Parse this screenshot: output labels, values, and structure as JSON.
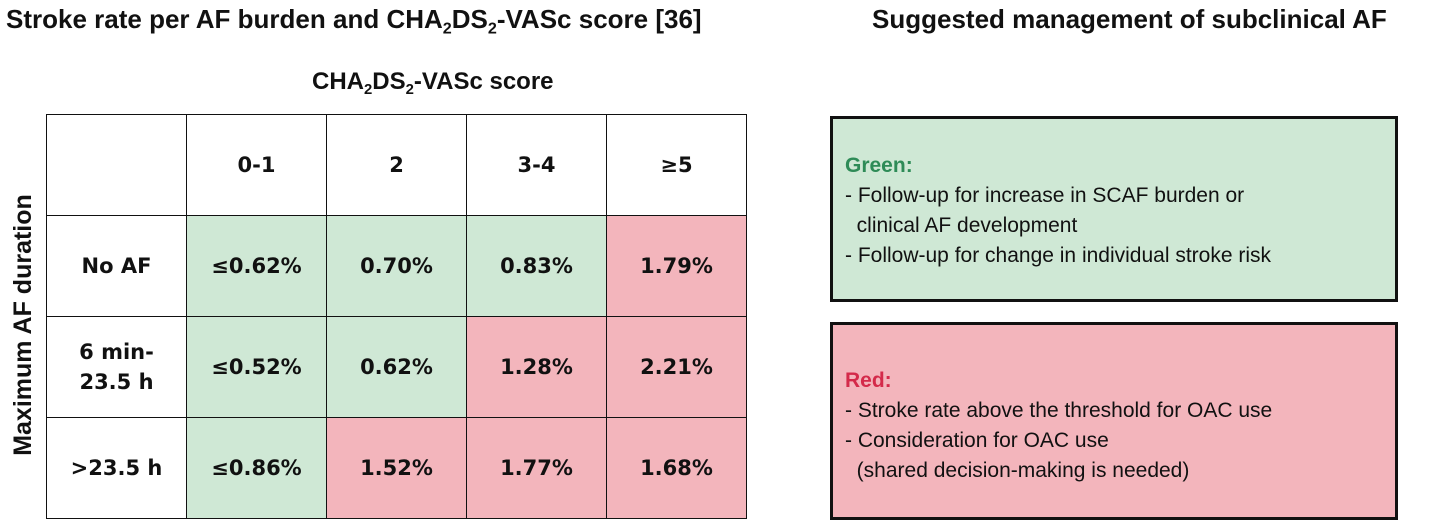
{
  "titles": {
    "left_prefix": "Stroke rate per AF burden and ",
    "left_cha": "CHA",
    "left_sub1": "2",
    "left_ds": "DS",
    "left_sub2": "2",
    "left_suffix": "-VASc score [36]",
    "right": "Suggested management of subclinical AF"
  },
  "score_header": {
    "cha": "CHA",
    "sub1": "2",
    "ds": "DS",
    "sub2": "2",
    "suffix": "-VASc score"
  },
  "y_axis_label": "Maximum AF duration",
  "table": {
    "columns": [
      "0-1",
      "2",
      "3-4",
      "≥5"
    ],
    "rows": [
      {
        "label": "No AF",
        "cells": [
          {
            "value": "≤0.62%",
            "color": "green"
          },
          {
            "value": "0.70%",
            "color": "green"
          },
          {
            "value": "0.83%",
            "color": "green"
          },
          {
            "value": "1.79%",
            "color": "red"
          }
        ]
      },
      {
        "label_line1": "6 min-",
        "label_line2": "23.5 h",
        "cells": [
          {
            "value": "≤0.52%",
            "color": "green"
          },
          {
            "value": "0.62%",
            "color": "green"
          },
          {
            "value": "1.28%",
            "color": "red"
          },
          {
            "value": "2.21%",
            "color": "red"
          }
        ]
      },
      {
        "label": ">23.5 h",
        "cells": [
          {
            "value": "≤0.86%",
            "color": "green"
          },
          {
            "value": "1.52%",
            "color": "red"
          },
          {
            "value": "1.77%",
            "color": "red"
          },
          {
            "value": "1.68%",
            "color": "red"
          }
        ]
      }
    ]
  },
  "green_box": {
    "heading": "Green:",
    "lines": [
      "- Follow-up for increase in SCAF burden or",
      "  clinical AF development",
      "- Follow-up for change in individual stroke risk"
    ]
  },
  "red_box": {
    "heading": "Red:",
    "lines": [
      "- Stroke rate above the threshold for OAC use",
      "- Consideration for OAC use",
      "  (shared decision-making is needed)"
    ]
  },
  "colors": {
    "green_fill": "#cfe8d5",
    "red_fill": "#f3b5bc",
    "green_text": "#2e8b57",
    "red_text": "#d42a4a"
  }
}
